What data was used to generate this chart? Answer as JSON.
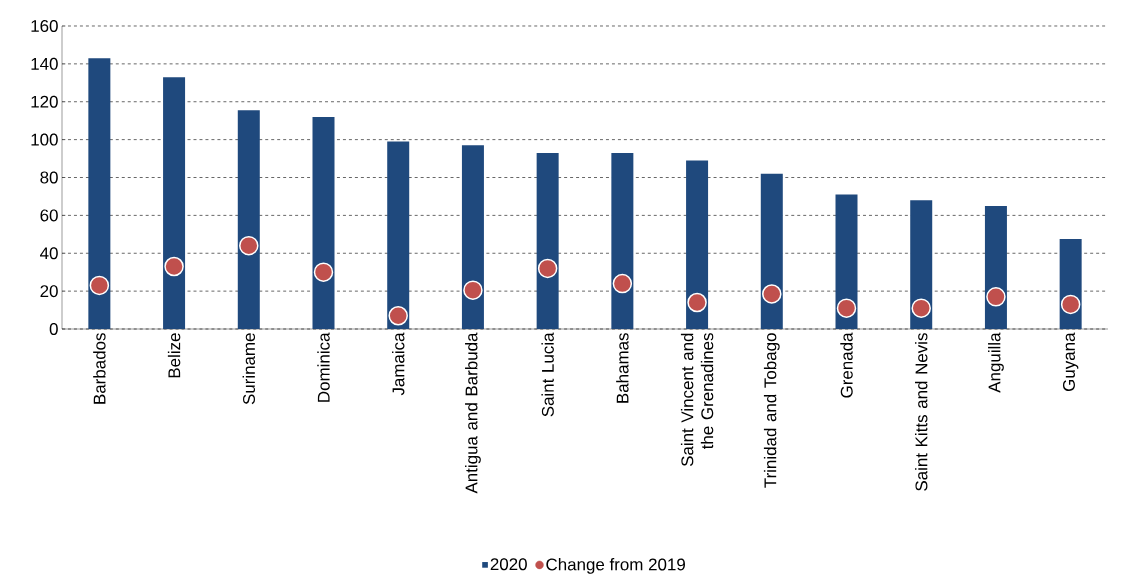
{
  "chart_data": {
    "type": "bar",
    "categories": [
      "Barbados",
      "Belize",
      "Suriname",
      "Dominica",
      "Jamaica",
      "Antigua and Barbuda",
      "Saint Lucia",
      "Bahamas",
      "Saint Vincent and the Grenadines",
      "Trinidad and Tobago",
      "Grenada",
      "Saint Kitts and Nevis",
      "Anguilla",
      "Guyana"
    ],
    "series": [
      {
        "name": "2020",
        "color": "#1f497d",
        "values": [
          143,
          133,
          115.5,
          112,
          99,
          97,
          93,
          93,
          89,
          82,
          71,
          68,
          65,
          47.5
        ]
      },
      {
        "name": "Change from 2019",
        "type": "scatter",
        "color": "#c0504d",
        "x": [
          "Barbados",
          "Belize",
          "Suriname",
          "Dominica",
          "Jamaica",
          "Antigua and Barbuda",
          "Saint Lucia",
          "Bahamas",
          "Saint Vincent and the Grenadines",
          "Trinidad and Tobago",
          "Grenada",
          "Saint Kitts and Nevis",
          "Anguilla",
          "Guyana"
        ],
        "values": [
          23,
          33,
          44,
          30,
          7,
          20.5,
          32,
          24,
          14,
          18.5,
          11,
          11,
          17,
          13
        ]
      }
    ],
    "ylim": [
      0,
      160
    ],
    "yticks": [
      0,
      20,
      40,
      60,
      80,
      100,
      120,
      140,
      160
    ],
    "grid": "y",
    "legend": "bottom",
    "marker": "circle"
  }
}
